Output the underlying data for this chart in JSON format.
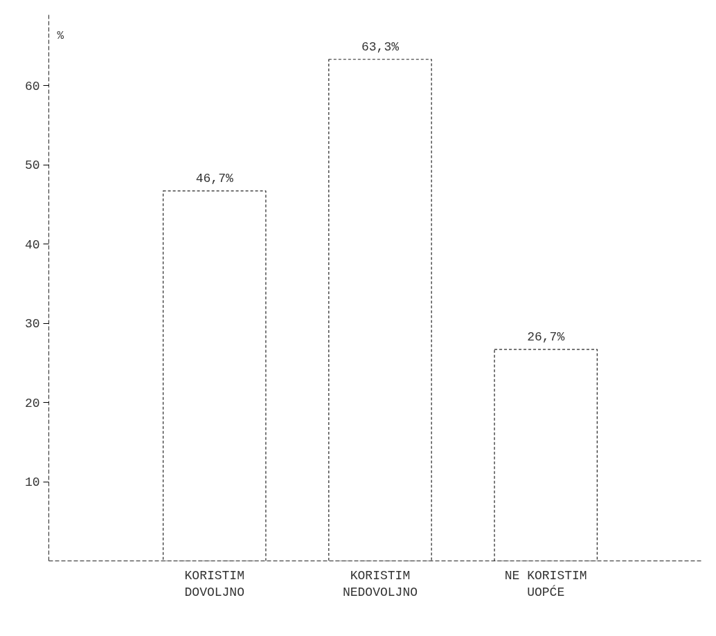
{
  "chart_data": {
    "type": "bar",
    "ylabel": "%",
    "categories": [
      "KORISTIM\nDOVOLJNO",
      "KORISTIM\nNEDOVOLJNO",
      "NE KORISTIM\nUOPĆE"
    ],
    "values": [
      46.7,
      63.3,
      26.7
    ],
    "color": "#ffffff",
    "value_labels": [
      "46,7%",
      "63,3%",
      "26,7%"
    ],
    "ylim": [
      0,
      69
    ],
    "yticks": [
      10,
      20,
      30,
      40,
      50,
      60
    ],
    "grid": false
  }
}
